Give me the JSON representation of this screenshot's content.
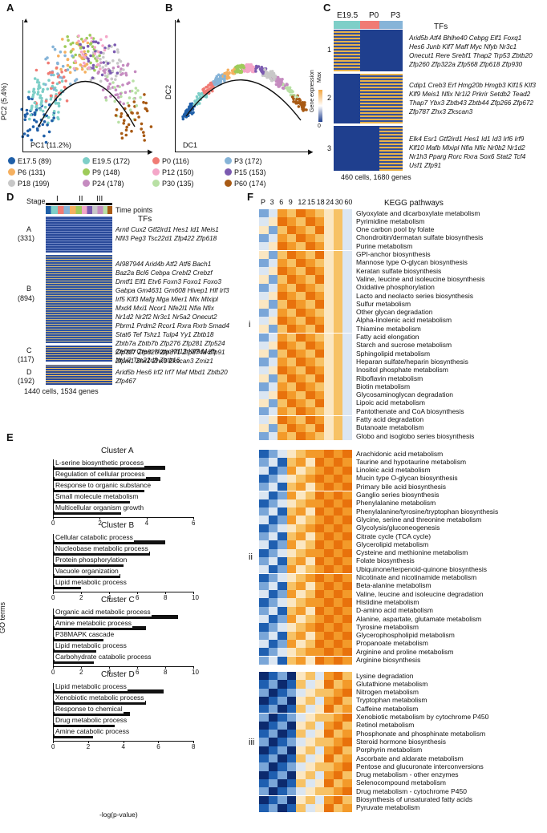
{
  "panels": {
    "A": {
      "label": "A",
      "xlabel": "PC1 (11.2%)",
      "ylabel": "PC2 (5.4%)"
    },
    "B": {
      "label": "B",
      "xlabel": "DC1",
      "ylabel": "DC2"
    },
    "C": {
      "label": "C",
      "stages": [
        "E19.5",
        "P0",
        "P3"
      ],
      "tf_title": "TFs",
      "cluster_ids": [
        "1",
        "2",
        "3"
      ],
      "colorbar": {
        "max": "Max",
        "min": "0",
        "title": "Gene expression"
      },
      "footer": "460 cells, 1680 genes",
      "tf_lines": [
        "Arid5b  Atf4  Bhlhe40  Cebpg  Elf1  Foxq1",
        "Hes6  Junb  Klf7  Maff  Myc  Nfyb  Nr3c1",
        "Onecut1  Rere  Srebf1  Thap2  Trp53  Zbtb20",
        "Zfp260  Zfp322a  Zfp568  Zfp618  Zfp930",
        "Cdip1  Creb3  Erf  Hmg20b  Hmgb3  Klf15  Klf3",
        "Klf9  Meis1  Nfix  Nr1i2  Prkrir  Setdb2  Tead2",
        "Thap7  Ybx3  Zbtb43  Zbtb44  Zfp266  Zfp672",
        "Zfp787  Zhx3  Zkscan3",
        "Elk4  Esr1  Gtf2ird1  Hes1  Id1  Id3  Irf6  Irf9",
        "Klf10  Mafb  Mlxipl  Nfia  Nfic  Nr0b2  Nr1d2",
        "Nr1h3  Pparg  Rorc  Rxra  Sox6  Stat2  Tcf4",
        "Usf1  Zfp91"
      ]
    },
    "legend": [
      {
        "label": "E17.5 (89)",
        "color": "#1f5fa8"
      },
      {
        "label": "E19.5 (172)",
        "color": "#7ecfc8"
      },
      {
        "label": "P0 (116)",
        "color": "#f07b74"
      },
      {
        "label": "P3 (172)",
        "color": "#86b4d8"
      },
      {
        "label": "P6 (131)",
        "color": "#f5b060"
      },
      {
        "label": "P9 (148)",
        "color": "#9ecb5a"
      },
      {
        "label": "P12 (150)",
        "color": "#f4a6c8"
      },
      {
        "label": "P15 (153)",
        "color": "#7b5ab0"
      },
      {
        "label": "P18 (199)",
        "color": "#c8c8c8"
      },
      {
        "label": "P24 (178)",
        "color": "#c58bc0"
      },
      {
        "label": "P30 (135)",
        "color": "#b8e0a4"
      },
      {
        "label": "P60 (174)",
        "color": "#a85a14"
      }
    ],
    "D": {
      "label": "D",
      "stage_label": "Stage",
      "stages": [
        "I",
        "II",
        "III"
      ],
      "timepoints_label": "Time points",
      "tf_title": "TFs",
      "clusters": [
        {
          "name": "A",
          "count": "(331)"
        },
        {
          "name": "B",
          "count": "(894)"
        },
        {
          "name": "C",
          "count": "(117)"
        },
        {
          "name": "D",
          "count": "(192)"
        }
      ],
      "footer": "1440 cells, 1534 genes",
      "tf_lines": [
        "Arntl  Cux2  Gtf2ird1  Hes1  Id1  Meis1",
        "Nfil3  Peg3  Tsc22d1  Zfp422  Zfp618",
        "AI987944  Arid4b  Atf2  Atf6  Bach1",
        "Baz2a  Bcl6  Cebpa  Crebl2  Crebzf",
        "Dmtf1  Elf1  Etv6  Foxn3  Foxo1  Foxo3",
        "Gabpa  Gm4631  Gm608  Hivep1  Hlf  Irf3",
        "Irf5  Klf3  Mafg  Mga  Mier1  Mlx  Mlxipl",
        "Mxd4  Mxi1  Ncor1  Nfe2l1  Nfia  Nfix",
        "Nr1d2  Nr2f2  Nr3c1  Nr5a2  Onecut2",
        "Pbrm1  Prdm2  Rcor1  Rxra  Rxrb  Smad4",
        "Stat6  Tef  Tshz1  Tulp4  Yy1  Zbtb18",
        "Zbtb7a  Zbtb7b  Zfp276  Zfp281  Zfp524",
        "Zfp707  Zfp825  Zfp871  Zfp874a  Zfp91",
        "Zfpm1  Zhx1  Zhx3  Zkscan3  Zmiz1",
        "Cebpb  Crem  Hopx  Klf13  Klf9  Mafb",
        "Nr1i2  Tsc22d3  Zbtb16",
        "Arid5b  Hes6  Irf2  Irf7  Maf  Mbd1  Zbtb20",
        "Zfp467"
      ]
    },
    "E": {
      "label": "E",
      "ylabel": "GO terms",
      "xlabel": "-log(p-value)",
      "clusters": [
        {
          "title": "Cluster A",
          "ticks": [
            "0",
            "2",
            "4",
            "6"
          ],
          "xmax": 6,
          "terms": [
            {
              "name": "L-serine biosynthetic process",
              "value": 4.8
            },
            {
              "name": "Regulation of cellular process",
              "value": 4.6
            },
            {
              "name": "Response to organic substance",
              "value": 3.9
            },
            {
              "name": "Small molecule metabolism",
              "value": 3.3
            },
            {
              "name": "Multicellular organism growth",
              "value": 2.9
            }
          ]
        },
        {
          "title": "Cluster B",
          "ticks": [
            "0",
            "2",
            "4",
            "6",
            "8",
            "10"
          ],
          "xmax": 10,
          "terms": [
            {
              "name": "Cellular catabolic process",
              "value": 8.0
            },
            {
              "name": "Nucleobase metabolic process",
              "value": 6.9
            },
            {
              "name": "Protein phosphorylation",
              "value": 5.0
            },
            {
              "name": "Vacuole organization",
              "value": 4.8
            },
            {
              "name": "Lipid metabolic process",
              "value": 2.0
            }
          ]
        },
        {
          "title": "Cluster C",
          "ticks": [
            "0",
            "2",
            "4",
            "6",
            "8",
            "10"
          ],
          "xmax": 10,
          "terms": [
            {
              "name": "Organic acid metabolic process",
              "value": 8.9
            },
            {
              "name": "Amine metabolic process",
              "value": 6.6
            },
            {
              "name": "P38MAPK cascade",
              "value": 3.6
            },
            {
              "name": "Lipid metabolic process",
              "value": 3.1
            },
            {
              "name": "Carbohydrate catabolic process",
              "value": 2.9
            }
          ]
        },
        {
          "title": "Cluster D",
          "ticks": [
            "0",
            "2",
            "4",
            "6",
            "8"
          ],
          "xmax": 8,
          "terms": [
            {
              "name": "Lipid metabolic process",
              "value": 6.3
            },
            {
              "name": "Xenobiotic metabolic process",
              "value": 5.3
            },
            {
              "name": "Response to chemical",
              "value": 4.4
            },
            {
              "name": "Drug metabolic process",
              "value": 3.5
            },
            {
              "name": "Amine catabolic process",
              "value": 2.3
            }
          ]
        }
      ]
    },
    "F": {
      "label": "F",
      "title": "KEGG pathways",
      "columns": [
        "P",
        "3",
        "6",
        "9",
        "12",
        "15",
        "18",
        "24",
        "30",
        "60"
      ],
      "groups": [
        {
          "id": "i",
          "pathways": [
            "Glyoxylate and dicarboxylate metabolism",
            "Pyrimidine metabolism",
            "One carbon pool by folate",
            "Chondroitin/dermatan sulfate biosynthesis",
            "Purine metabolism",
            "GPI-anchor biosynthesis",
            "Mannose type O-glycan biosynthesis",
            "Keratan sulfate biosynthesis",
            "Valine, leucine and isoleucine biosynthesis",
            "Oxidative phosphorylation",
            "Lacto and neolacto series biosynthesis",
            "Sulfur metabolism",
            "Other glycan degradation",
            "Alpha-linolenic acid metabolism",
            "Thiamine metabolism",
            "Fatty acid elongation",
            "Starch and sucrose metabolism",
            "Sphingolipid metabolism",
            "Heparan sulfate/heparin biosynthesis",
            "Inositol phosphate metabolism",
            "Riboflavin metabolism",
            "Biotin metabolism",
            "Glycosaminoglycan degradation",
            "Lipoic acid metabolism",
            "Pantothenate and CoA biosynthesis",
            "Fatty acid degradation",
            "Butanoate metabolism",
            "Globo and isoglobo series biosynthesis"
          ]
        },
        {
          "id": "ii",
          "pathways": [
            "Arachidonic acid metabolism",
            "Taurine and hypotaurine metabolism",
            "Linoleic acid metabolism",
            "Mucin type O-glycan biosynthesis",
            "Primary bile acid biosynthesis",
            "Ganglio series biosynthesis",
            "Phenylalanine metabolism",
            "Phenylalanine/tyrosine/tryptophan biosynthesis",
            "Glycine, serine and threonine metabolism",
            "Glycolysis/gluconeogenesis",
            "Citrate cycle (TCA cycle)",
            "Glycerolipid metabolism",
            "Cysteine and methionine metabolism",
            "Folate biosynthesis",
            "Ubiquinone/terpenoid-quinone biosynthesis",
            "Nicotinate and nicotinamide metabolism",
            "Beta-alanine metabolism",
            "Valine, leucine and isoleucine degradation",
            "Histidine metabolism",
            "D-amino acid metabolism",
            "Alanine, aspartate, glutamate metabolism",
            "Tyrosine metabolism",
            "Glycerophospholipid metabolism",
            "Propanoate metabolism",
            "Arginine and proline metabolism",
            "Arginine biosynthesis"
          ]
        },
        {
          "id": "iii",
          "pathways": [
            "Lysine degradation",
            "Glutathione metabolism",
            "Nitrogen metabolism",
            "Tryptophan metabolism",
            "Caffeine metabolism",
            "Xenobiotic metabolism by cytochrome P450",
            "Retinol metabolism",
            "Phosphonate and phosphinate metabolism",
            "Steroid hormone biosynthesis",
            "Porphyrin metabolism",
            "Ascorbate and aldarate metabolism",
            "Pentose and glucuronate interconversions",
            "Drug metabolism - other enzymes",
            "Selenocompound metabolism",
            "Drug metabolism - cytochrome P450",
            "Biosynthesis of unsaturated fatty acids",
            "Pyruvate metabolism"
          ]
        }
      ]
    }
  }
}
